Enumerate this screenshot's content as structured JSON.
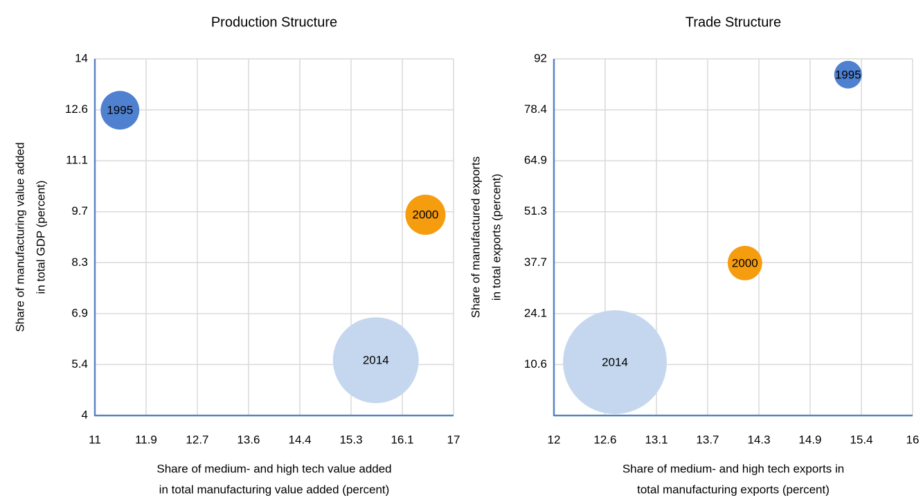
{
  "chart_data": [
    {
      "type": "bubble",
      "title": "Production Structure",
      "xlabel": [
        "Share of medium- and high tech value added",
        "in total manufacturing value added (percent)"
      ],
      "ylabel": [
        "Share of manufacturing value added",
        "in total GDP (percent)"
      ],
      "xlim": [
        11,
        17
      ],
      "xticks": [
        11,
        {
          "value": 11.857,
          "label": "11.9"
        },
        {
          "value": 12.714,
          "label": "12.7"
        },
        {
          "value": 13.571,
          "label": "13.6"
        },
        {
          "value": 14.429,
          "label": "14.4"
        },
        {
          "value": 15.286,
          "label": "15.3"
        },
        {
          "value": 16.143,
          "label": "16.1"
        },
        17
      ],
      "ylim": [
        4,
        14
      ],
      "yticks": [
        4,
        {
          "value": 5.429,
          "label": "5.4"
        },
        {
          "value": 6.857,
          "label": "6.9"
        },
        {
          "value": 8.286,
          "label": "8.3"
        },
        {
          "value": 9.714,
          "label": "9.7"
        },
        {
          "value": 11.143,
          "label": "11.1"
        },
        {
          "value": 12.571,
          "label": "12.6"
        },
        14
      ],
      "grid": true,
      "series": [
        {
          "name": "1995",
          "color": "#4f81d0",
          "x": [
            11.42
          ],
          "values": [
            12.56
          ],
          "sizes": [
            78
          ]
        },
        {
          "name": "2000",
          "color": "#f59c0f",
          "x": [
            16.53
          ],
          "values": [
            9.63
          ],
          "sizes": [
            84
          ]
        },
        {
          "name": "2014",
          "color": "#c5d7ef",
          "x": [
            15.7
          ],
          "values": [
            5.55
          ],
          "sizes": [
            384
          ]
        }
      ]
    },
    {
      "type": "bubble",
      "title": "Trade Structure",
      "xlabel": [
        "Share of medium- and high tech exports in",
        "total manufacturing exports (percent)"
      ],
      "ylabel": [
        "Share of manufactured exports",
        "in total exports (percent)"
      ],
      "xlim": [
        12,
        16
      ],
      "xticks": [
        12,
        {
          "value": 12.571,
          "label": "12.6"
        },
        {
          "value": 13.143,
          "label": "13.1"
        },
        {
          "value": 13.714,
          "label": "13.7"
        },
        {
          "value": 14.286,
          "label": "14.3"
        },
        {
          "value": 14.857,
          "label": "14.9"
        },
        {
          "value": 15.429,
          "label": "15.4"
        },
        16
      ],
      "ylim": [
        -3,
        92
      ],
      "yticks": [
        {
          "value": 10.571,
          "label": "10.6"
        },
        {
          "value": 24.143,
          "label": "24.1"
        },
        {
          "value": 37.714,
          "label": "37.7"
        },
        {
          "value": 51.286,
          "label": "51.3"
        },
        {
          "value": 64.857,
          "label": "64.9"
        },
        {
          "value": 78.429,
          "label": "78.4"
        },
        92
      ],
      "grid": true,
      "series": [
        {
          "name": "1995",
          "color": "#4f81d0",
          "x": [
            15.28
          ],
          "values": [
            87.8
          ],
          "sizes": [
            40
          ]
        },
        {
          "name": "2000",
          "color": "#f59c0f",
          "x": [
            14.13
          ],
          "values": [
            37.6
          ],
          "sizes": [
            62
          ]
        },
        {
          "name": "2014",
          "color": "#c5d7ef",
          "x": [
            12.68
          ],
          "values": [
            11.2
          ],
          "sizes": [
            562
          ]
        }
      ]
    }
  ]
}
